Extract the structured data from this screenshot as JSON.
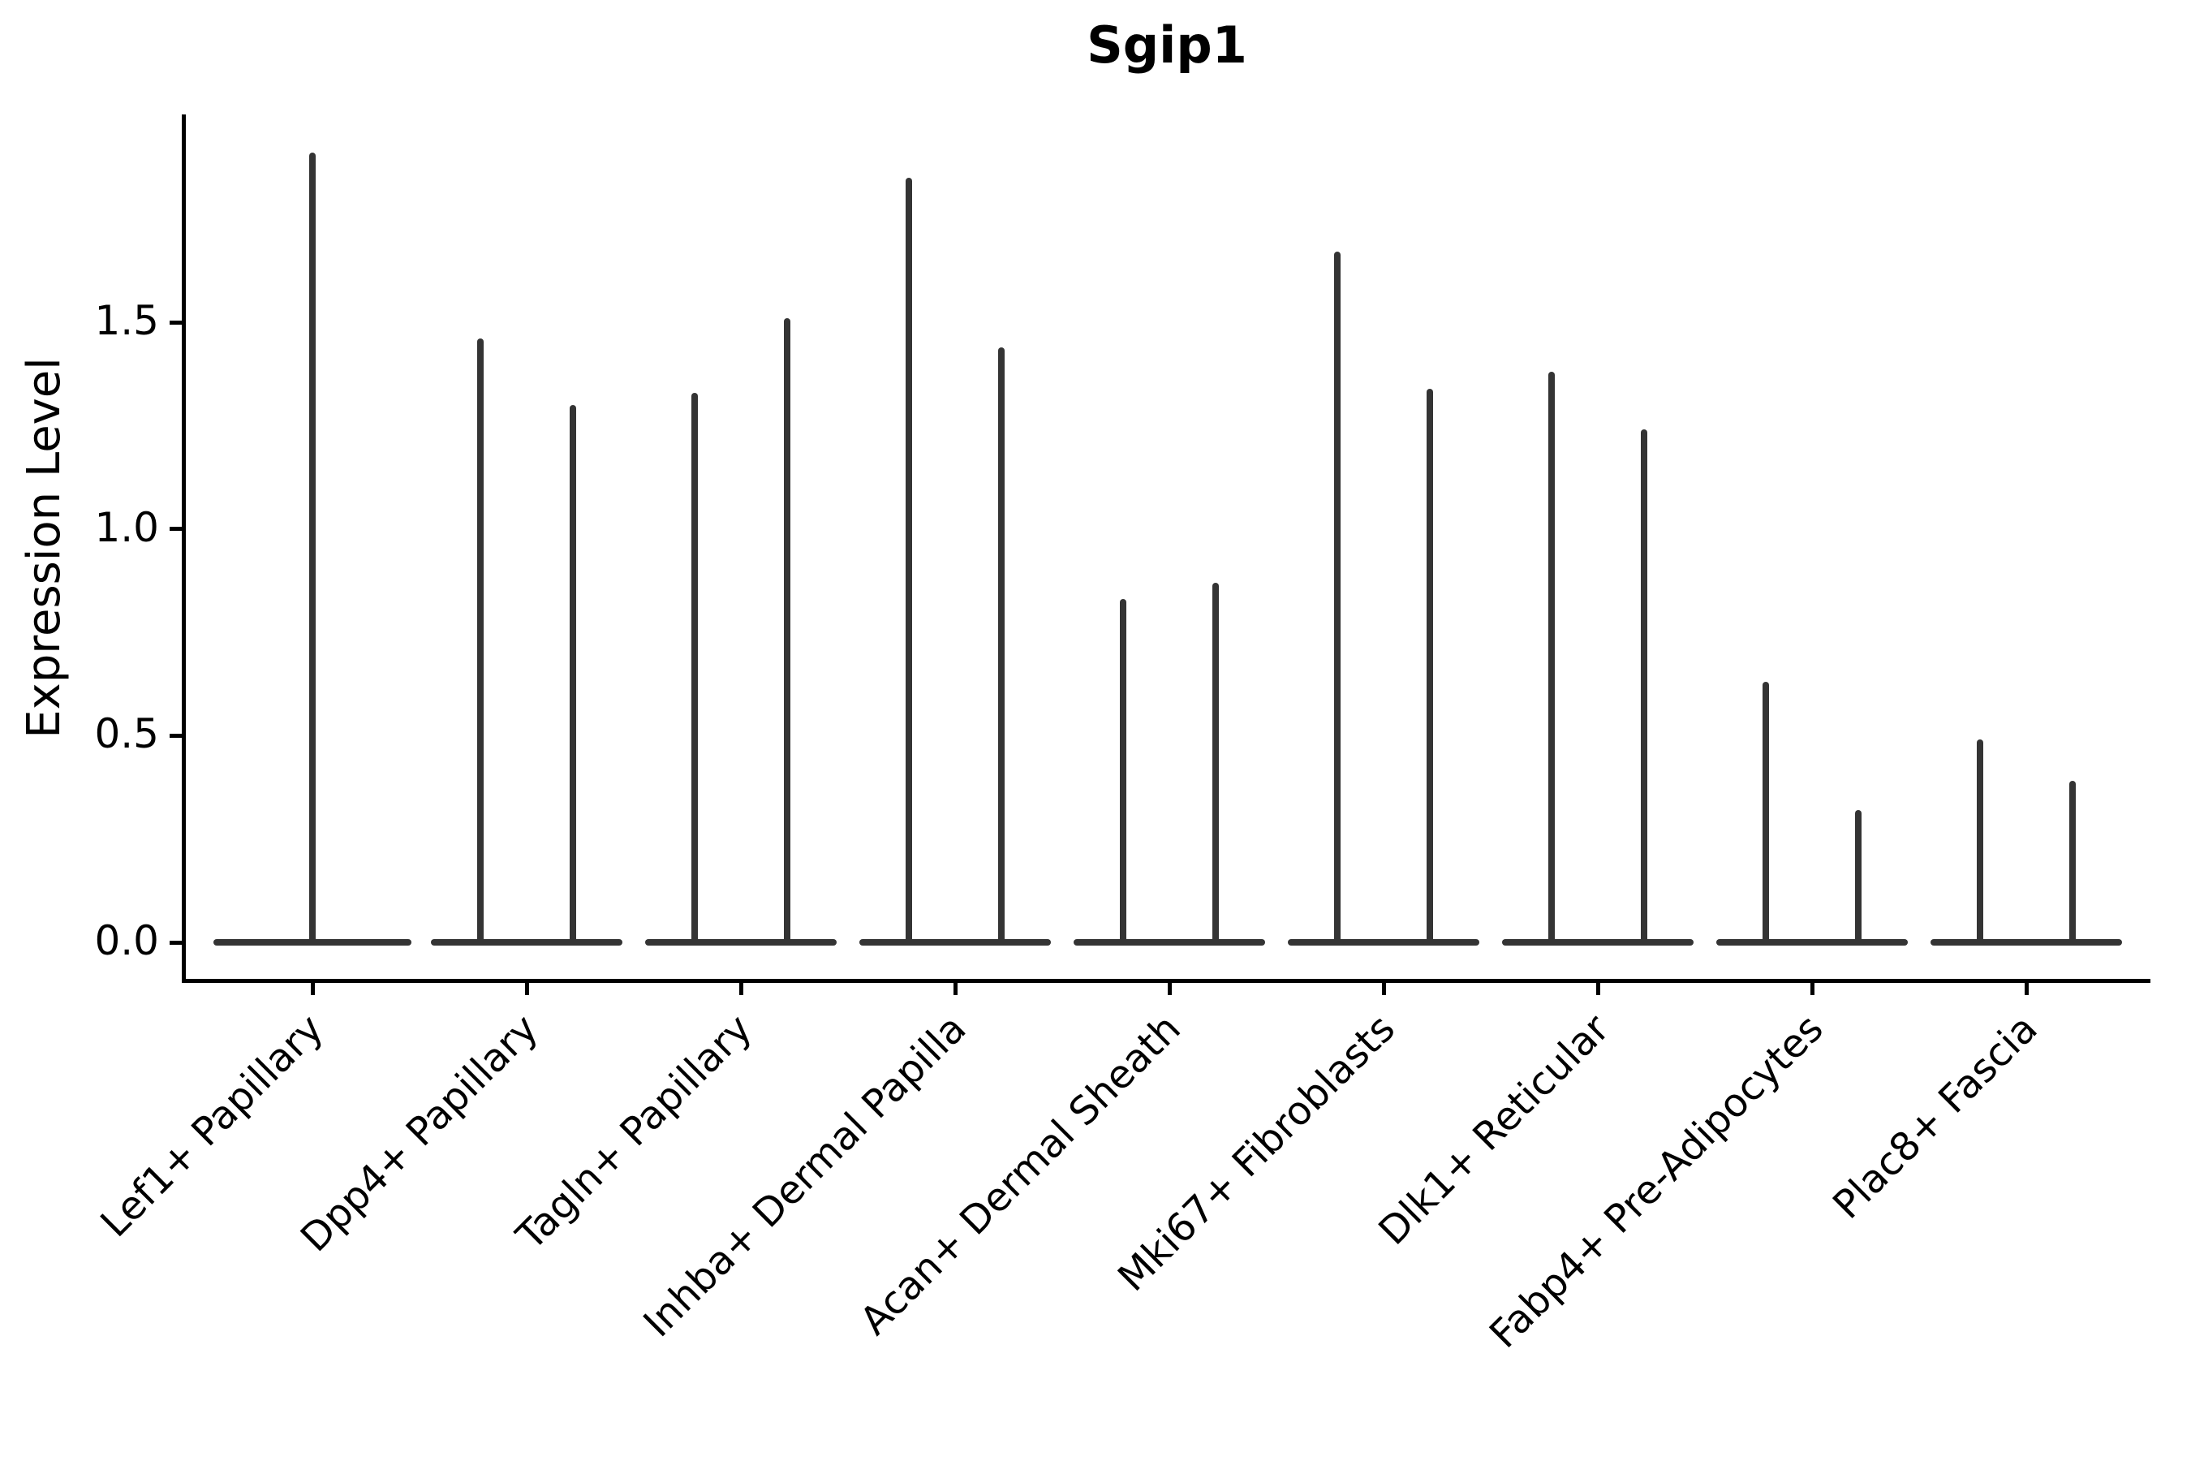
{
  "figure": {
    "title": "Sgip1"
  },
  "chart_data": {
    "type": "violin",
    "title": "Sgip1",
    "ylabel": "Expression Level",
    "xlabel": "",
    "grid": false,
    "legend": "none",
    "ylim": [
      -0.09,
      2.0
    ],
    "ytick_values": [
      0.0,
      0.5,
      1.0,
      1.5
    ],
    "ytick_labels": [
      "0.0",
      "0.5",
      "1.0",
      "1.5"
    ],
    "categories": [
      "Lef1+ Papillary",
      "Dpp4+ Papillary",
      "Tagln+ Papillary",
      "Inhba+ Dermal Papilla",
      "Acan+ Dermal Sheath",
      "Mki67+ Fibroblasts",
      "Dlk1+ Reticular",
      "Fabp4+ Pre-Adipocytes",
      "Plac8+ Fascia"
    ],
    "series": [
      {
        "category": "Lef1+ Papillary",
        "violin_peaks": [
          1.91
        ]
      },
      {
        "category": "Dpp4+ Papillary",
        "violin_peaks": [
          1.46,
          1.3
        ]
      },
      {
        "category": "Tagln+ Papillary",
        "violin_peaks": [
          1.33,
          1.51
        ]
      },
      {
        "category": "Inhba+ Dermal Papilla",
        "violin_peaks": [
          1.85,
          1.44
        ]
      },
      {
        "category": "Acan+ Dermal Sheath",
        "violin_peaks": [
          0.83,
          0.87
        ]
      },
      {
        "category": "Mki67+ Fibroblasts",
        "violin_peaks": [
          1.67,
          1.34
        ]
      },
      {
        "category": "Dlk1+ Reticular",
        "violin_peaks": [
          1.38,
          1.24
        ]
      },
      {
        "category": "Fabp4+ Pre-Adipocytes",
        "violin_peaks": [
          0.63,
          0.32
        ]
      },
      {
        "category": "Plac8+ Fascia",
        "violin_peaks": [
          0.49,
          0.39
        ]
      }
    ],
    "violin_color": "#343434",
    "shape_note": "Each violin is a needle shape: a wide flat lens of density at 0 expression with a single hair-thin spike rising to the peak value; categories 2-9 contain two side-by-side violins, category 1 contains one full-width violin."
  }
}
